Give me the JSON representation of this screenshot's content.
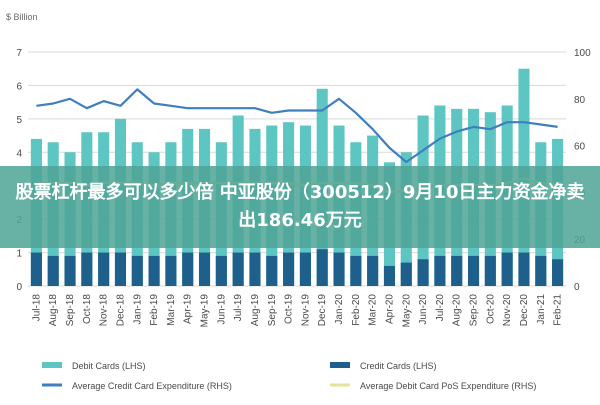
{
  "banner": {
    "headline": "股票杠杆最多可以多少倍 中亚股份（300512）9月10日主力资金净卖出186.46万元"
  },
  "colors": {
    "debit_cards": "#5ec6c2",
    "credit_cards": "#1f5f8b",
    "avg_credit": "#3f7fbf",
    "avg_debit": "#e6e39a",
    "banner": "#4fa496"
  },
  "chart_data": {
    "type": "bar",
    "unit_label": "$ Billion",
    "categories": [
      "Jul-18",
      "Aug-18",
      "Sep-18",
      "Oct-18",
      "Nov-18",
      "Dec-18",
      "Jan-19",
      "Feb-19",
      "Mar-19",
      "Apr-19",
      "May-19",
      "Jun-19",
      "Jul-19",
      "Aug-19",
      "Sep-19",
      "Oct-19",
      "Nov-19",
      "Dec-19",
      "Jan-20",
      "Feb-20",
      "Mar-20",
      "Apr-20",
      "May-20",
      "Jun-20",
      "Jul-20",
      "Aug-20",
      "Sep-20",
      "Oct-20",
      "Nov-20",
      "Dec-20",
      "Jan-21",
      "Feb-21"
    ],
    "left_axis": {
      "range": [
        0,
        7
      ],
      "ticks": [
        "0",
        "1",
        "2",
        "3",
        "4",
        "5",
        "6",
        "7"
      ]
    },
    "right_axis": {
      "range": [
        0,
        100
      ],
      "ticks": [
        "0",
        "20",
        "40",
        "60",
        "80",
        "100"
      ]
    },
    "series": [
      {
        "name": "Debit Cards (LHS)",
        "kind": "bar",
        "axis": "left",
        "values": [
          4.4,
          4.3,
          4.0,
          4.6,
          4.6,
          5.0,
          4.3,
          4.0,
          4.3,
          4.7,
          4.7,
          4.3,
          5.1,
          4.7,
          4.8,
          4.9,
          4.8,
          5.9,
          4.8,
          4.3,
          4.5,
          3.7,
          4.0,
          5.1,
          5.4,
          5.3,
          5.3,
          5.2,
          5.4,
          6.5,
          4.3,
          4.4
        ]
      },
      {
        "name": "Credit Cards (LHS)",
        "kind": "bar",
        "axis": "left",
        "values": [
          1.0,
          0.9,
          0.9,
          1.0,
          1.0,
          1.0,
          0.9,
          0.9,
          0.9,
          1.0,
          1.0,
          0.9,
          1.0,
          1.0,
          0.9,
          1.0,
          1.0,
          1.1,
          1.0,
          0.9,
          0.9,
          0.6,
          0.7,
          0.8,
          0.9,
          0.9,
          0.9,
          0.9,
          1.0,
          1.0,
          0.9,
          0.8
        ]
      },
      {
        "name": "Average Credit Card Expenditure (RHS)",
        "kind": "line",
        "axis": "right",
        "values": [
          77,
          78,
          80,
          76,
          79,
          77,
          84,
          78,
          77,
          76,
          76,
          76,
          76,
          76,
          74,
          75,
          75,
          75,
          80,
          74,
          67,
          59,
          53,
          58,
          63,
          66,
          68,
          67,
          70,
          70,
          69,
          68
        ]
      },
      {
        "name": "Average Debit Card PoS Expenditure (RHS)",
        "kind": "line",
        "axis": "right",
        "values": [
          44,
          44,
          44,
          43,
          44,
          44,
          44,
          43,
          44,
          44,
          44,
          44,
          44,
          44,
          44,
          44,
          43,
          44,
          44,
          44,
          43,
          40,
          41,
          42,
          43,
          43,
          43,
          43,
          44,
          46,
          44,
          43
        ]
      }
    ],
    "legend_position": "bottom",
    "grid": true
  }
}
